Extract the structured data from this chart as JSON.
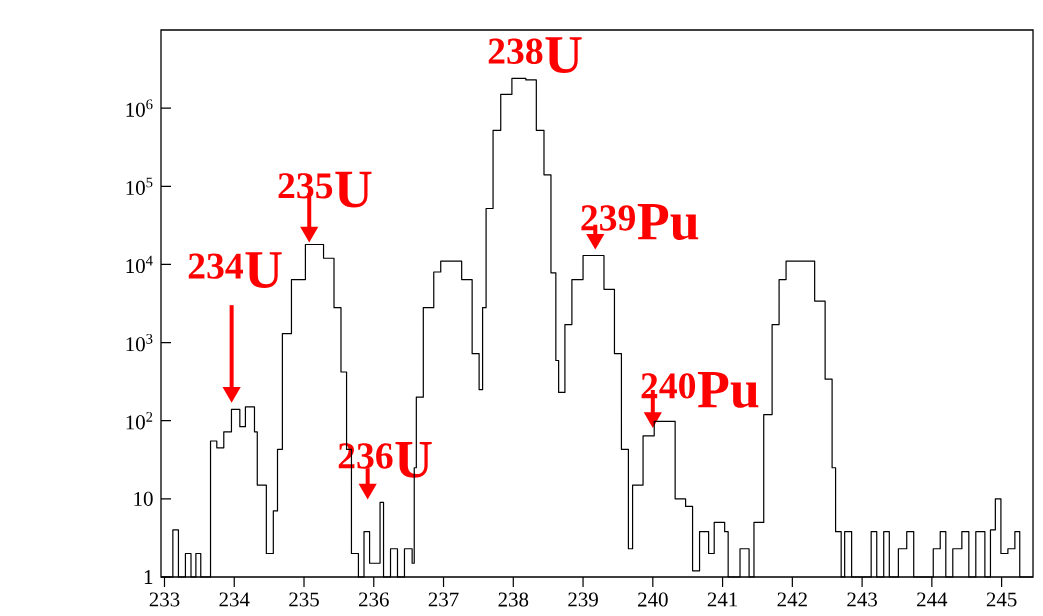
{
  "chart_data": {
    "type": "step",
    "color": "#000000",
    "log": true,
    "x": [
      232.95,
      233.12,
      233.2,
      233.3,
      233.38,
      233.45,
      233.52,
      233.66,
      233.75,
      233.85,
      233.96,
      234.08,
      234.16,
      234.29,
      234.33,
      234.46,
      234.56,
      234.62,
      234.69,
      234.82,
      235.02,
      235.28,
      235.43,
      235.53,
      235.61,
      235.68,
      235.78,
      235.86,
      235.94,
      236.09,
      236.14,
      236.24,
      236.34,
      236.44,
      236.55,
      236.58,
      236.61,
      236.71,
      236.86,
      236.96,
      237.16,
      237.26,
      237.41,
      237.51,
      237.56,
      237.61,
      237.71,
      237.82,
      237.98,
      238.18,
      238.33,
      238.44,
      238.54,
      238.61,
      238.65,
      238.74,
      238.84,
      239.0,
      239.15,
      239.3,
      239.45,
      239.55,
      239.65,
      239.71,
      239.86,
      240.02,
      240.16,
      240.32,
      240.47,
      240.57,
      240.67,
      240.8,
      240.88,
      241.03,
      241.08,
      241.25,
      241.38,
      241.45,
      241.59,
      241.71,
      241.81,
      241.91,
      242.17,
      242.32,
      242.47,
      242.57,
      242.62,
      242.7,
      242.75,
      242.85,
      243.08,
      243.13,
      243.21,
      243.31,
      243.39,
      243.52,
      243.64,
      243.74,
      244.02,
      244.12,
      244.2,
      244.3,
      244.43,
      244.53,
      244.63,
      244.76,
      244.84,
      244.91,
      244.99,
      245.09,
      245.19,
      245.26,
      245.45
    ],
    "values": [
      1,
      4,
      1,
      2,
      1,
      2,
      1,
      55,
      45,
      72,
      140,
      84,
      150,
      72,
      15,
      2,
      7,
      43,
      1300,
      6400,
      18000,
      12000,
      2800,
      420,
      43,
      2,
      1,
      3.8,
      1.5,
      9,
      1,
      2.3,
      1,
      2.3,
      1.5,
      25,
      200,
      2800,
      8000,
      11000,
      11000,
      6400,
      720,
      250,
      2800,
      52000,
      520000,
      1500000,
      2400000,
      2300000,
      520000,
      140000,
      7800,
      590,
      230,
      1700,
      6400,
      13000,
      13000,
      4800,
      720,
      43,
      2.3,
      15,
      64,
      98,
      98,
      10,
      8,
      1.2,
      3.8,
      2,
      5,
      3.8,
      1,
      2.3,
      1,
      5,
      120,
      1700,
      6400,
      11000,
      11000,
      3400,
      340,
      25,
      3.8,
      1,
      3.8,
      1,
      1,
      3.8,
      1,
      3.8,
      1,
      2.3,
      3.8,
      1,
      2.3,
      3.8,
      1,
      2.3,
      3.8,
      1,
      3.8,
      1,
      4,
      10,
      2,
      2.3,
      3.8,
      1,
      1
    ],
    "xlim": [
      232.95,
      245.45
    ],
    "ylim": [
      1,
      10000000
    ],
    "xticks": [
      233,
      234,
      235,
      236,
      237,
      238,
      239,
      240,
      241,
      242,
      243,
      244,
      245
    ],
    "yticks": [
      1,
      10,
      {
        "value": 100,
        "label": "10$^{2}$"
      },
      {
        "value": 1000,
        "label": "10$^{3}$"
      },
      {
        "value": 10000,
        "label": "10$^{4}$"
      },
      {
        "value": 100000,
        "label": "10$^{5}$"
      },
      {
        "value": 1000000,
        "label": "10$^{6}$"
      }
    ],
    "annotations": [
      "$^{234}$U",
      "$^{235}$U",
      "$^{236}$U",
      "$^{238}$U",
      "$^{239}$Pu",
      "$^{240}$Pu"
    ]
  }
}
